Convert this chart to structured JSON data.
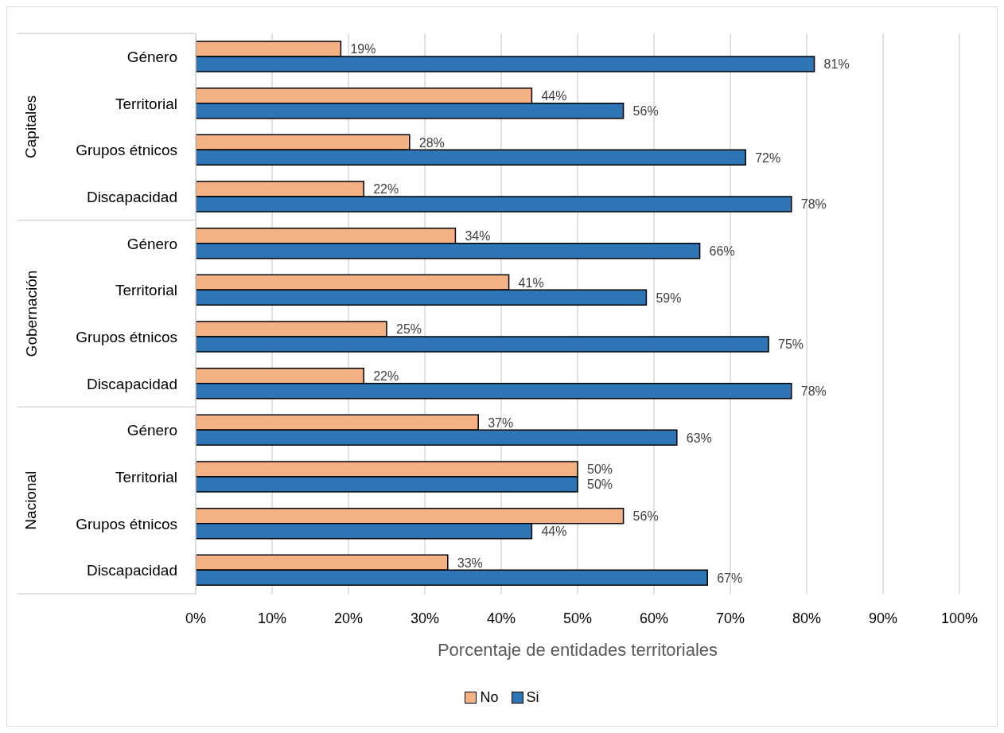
{
  "chart_data": {
    "type": "bar",
    "orientation": "horizontal",
    "categories": [
      "Género",
      "Territorial",
      "Grupos étnicos",
      "Discapacidad",
      "Género",
      "Territorial",
      "Grupos étnicos",
      "Discapacidad",
      "Género",
      "Territorial",
      "Grupos étnicos",
      "Discapacidad"
    ],
    "series": [
      {
        "name": "No",
        "color": "#f4b183",
        "values": [
          19,
          44,
          28,
          22,
          34,
          41,
          25,
          22,
          37,
          50,
          56,
          33
        ],
        "value_labels": [
          "19%",
          "44%",
          "28%",
          "22%",
          "34%",
          "41%",
          "25%",
          "22%",
          "37%",
          "50%",
          "56%",
          "33%"
        ]
      },
      {
        "name": "Si",
        "color": "#2e75b6",
        "values": [
          81,
          56,
          72,
          78,
          66,
          59,
          75,
          78,
          63,
          50,
          44,
          67
        ],
        "value_labels": [
          "81%",
          "56%",
          "72%",
          "78%",
          "66%",
          "59%",
          "75%",
          "78%",
          "63%",
          "50%",
          "44%",
          "67%"
        ]
      }
    ],
    "xlabel": "Porcentaje de entidades territoriales",
    "xlim": [
      0,
      100
    ],
    "xticks": [
      {
        "value": 0,
        "label": "0%"
      },
      {
        "value": 10,
        "label": "10%"
      },
      {
        "value": 20,
        "label": "20%"
      },
      {
        "value": 30,
        "label": "30%"
      },
      {
        "value": 40,
        "label": "40%"
      },
      {
        "value": 50,
        "label": "50%"
      },
      {
        "value": 60,
        "label": "60%"
      },
      {
        "value": 70,
        "label": "70%"
      },
      {
        "value": 80,
        "label": "80%"
      },
      {
        "value": 90,
        "label": "90%"
      },
      {
        "value": 100,
        "label": "100%"
      }
    ],
    "grid": "x",
    "legend": "bottom",
    "annotations": [
      "Capitales",
      "Gobernación",
      "Nacional"
    ]
  }
}
